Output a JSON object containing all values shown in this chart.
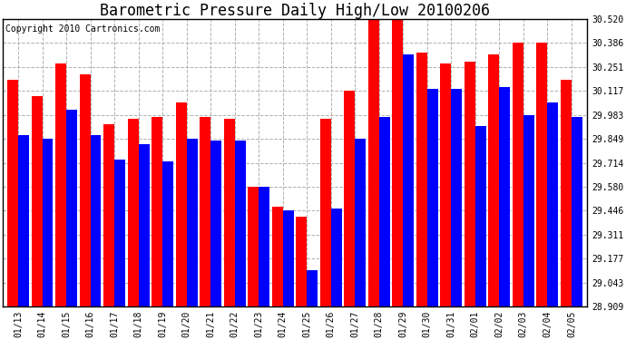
{
  "title": "Barometric Pressure Daily High/Low 20100206",
  "copyright": "Copyright 2010 Cartronics.com",
  "dates": [
    "01/13",
    "01/14",
    "01/15",
    "01/16",
    "01/17",
    "01/18",
    "01/19",
    "01/20",
    "01/21",
    "01/22",
    "01/23",
    "01/24",
    "01/25",
    "01/26",
    "01/27",
    "01/28",
    "01/29",
    "01/30",
    "01/31",
    "02/01",
    "02/02",
    "02/03",
    "02/04",
    "02/05"
  ],
  "highs": [
    30.18,
    30.09,
    30.27,
    30.21,
    29.93,
    29.96,
    29.97,
    30.05,
    29.97,
    29.96,
    29.58,
    29.47,
    29.41,
    29.96,
    30.12,
    30.52,
    30.52,
    30.33,
    30.27,
    30.28,
    30.32,
    30.39,
    30.39,
    30.18
  ],
  "lows": [
    29.87,
    29.85,
    30.01,
    29.87,
    29.73,
    29.82,
    29.72,
    29.85,
    29.84,
    29.84,
    29.58,
    29.45,
    29.11,
    29.46,
    29.85,
    29.97,
    30.32,
    30.13,
    30.13,
    29.92,
    30.14,
    29.98,
    30.05,
    29.97
  ],
  "ylim_min": 28.909,
  "ylim_max": 30.52,
  "yticks": [
    28.909,
    29.043,
    29.177,
    29.311,
    29.446,
    29.58,
    29.714,
    29.849,
    29.983,
    30.117,
    30.251,
    30.386,
    30.52
  ],
  "high_color": "#ff0000",
  "low_color": "#0000ff",
  "bg_color": "#ffffff",
  "grid_color": "#b0b0b0",
  "title_fontsize": 12,
  "copyright_fontsize": 7,
  "tick_fontsize": 7,
  "fig_width": 6.9,
  "fig_height": 3.75,
  "dpi": 100
}
